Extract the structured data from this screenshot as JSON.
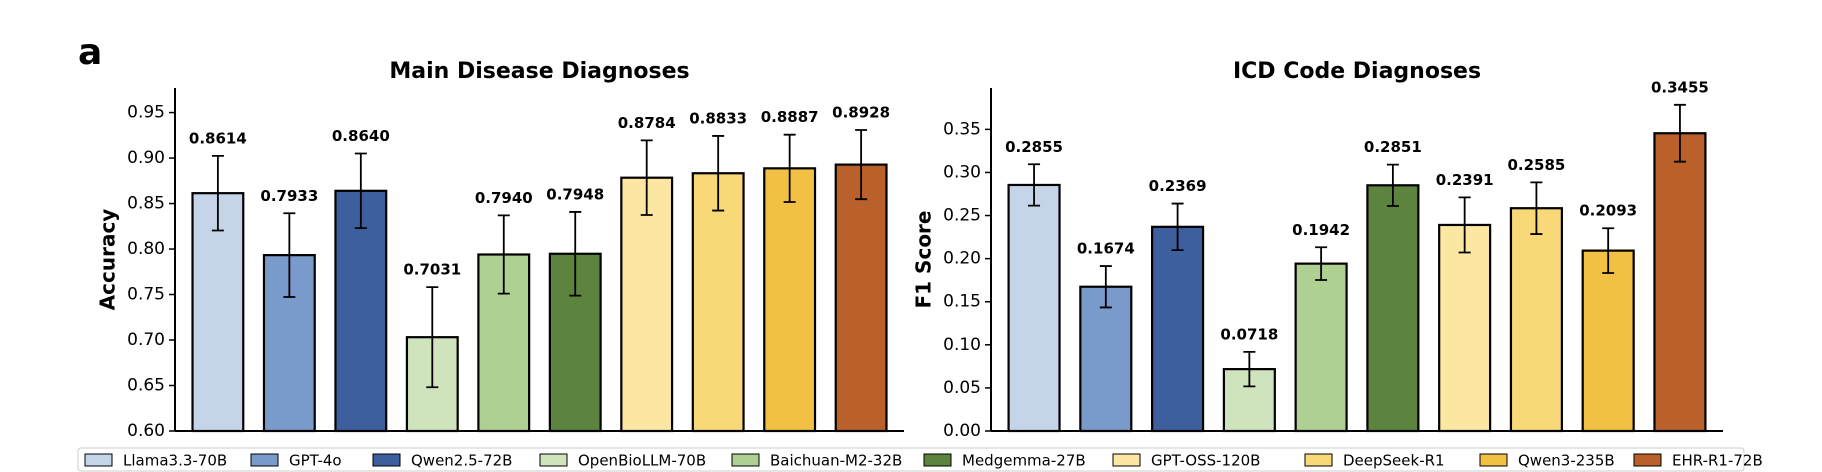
{
  "panel_label": "a",
  "chart_data": [
    {
      "type": "bar",
      "title": "Main Disease Diagnoses",
      "y_label": "Accuracy",
      "categories": [
        "Llama3.3-70B",
        "GPT-4o",
        "Qwen2.5-72B",
        "OpenBioLLM-70B",
        "Baichuan-M2-32B",
        "Medgemma-27B",
        "GPT-OSS-120B",
        "DeepSeek-R1",
        "Qwen3-235B",
        "EHR-R1-72B"
      ],
      "values": [
        0.8614,
        0.7933,
        0.864,
        0.7031,
        0.794,
        0.7948,
        0.8784,
        0.8833,
        0.8887,
        0.8928
      ],
      "value_labels": [
        "0.8614",
        "0.7933",
        "0.8640",
        "0.7031",
        "0.7940",
        "0.7948",
        "0.8784",
        "0.8833",
        "0.8887",
        "0.8928"
      ],
      "errors": [
        0.041,
        0.046,
        0.041,
        0.055,
        0.043,
        0.046,
        0.041,
        0.041,
        0.037,
        0.038
      ],
      "colors": [
        "#c5d4e8",
        "#7a9acb",
        "#3d5f9e",
        "#cfe3bd",
        "#aed093",
        "#5c843f",
        "#fbe6a2",
        "#f8d877",
        "#f2c143",
        "#b9602b"
      ],
      "ylim": [
        0.6,
        0.977
      ],
      "yticks": [
        {
          "value": 0.6,
          "label": "0.60"
        },
        {
          "value": 0.65,
          "label": "0.65"
        },
        {
          "value": 0.7,
          "label": "0.70"
        },
        {
          "value": 0.75,
          "label": "0.75"
        },
        {
          "value": 0.8,
          "label": "0.80"
        },
        {
          "value": 0.85,
          "label": "0.85"
        },
        {
          "value": 0.9,
          "label": "0.90"
        },
        {
          "value": 0.95,
          "label": "0.95"
        }
      ]
    },
    {
      "type": "bar",
      "title": "ICD Code Diagnoses",
      "y_label": "F1 Score",
      "categories": [
        "Llama3.3-70B",
        "GPT-4o",
        "Qwen2.5-72B",
        "OpenBioLLM-70B",
        "Baichuan-M2-32B",
        "Medgemma-27B",
        "GPT-OSS-120B",
        "DeepSeek-R1",
        "Qwen3-235B",
        "EHR-R1-72B"
      ],
      "values": [
        0.2855,
        0.1674,
        0.2369,
        0.0718,
        0.1942,
        0.2851,
        0.2391,
        0.2585,
        0.2093,
        0.3455
      ],
      "value_labels": [
        "0.2855",
        "0.1674",
        "0.2369",
        "0.0718",
        "0.1942",
        "0.2851",
        "0.2391",
        "0.2585",
        "0.2093",
        "0.3455"
      ],
      "errors": [
        0.024,
        0.024,
        0.027,
        0.02,
        0.019,
        0.024,
        0.032,
        0.03,
        0.026,
        0.033
      ],
      "colors": [
        "#c5d4e8",
        "#7a9acb",
        "#3d5f9e",
        "#cfe3bd",
        "#aed093",
        "#5c843f",
        "#fbe6a2",
        "#f8d877",
        "#f2c143",
        "#b9602b"
      ],
      "ylim": [
        0,
        0.398
      ],
      "yticks": [
        {
          "value": 0,
          "label": "0.00"
        },
        {
          "value": 0.05,
          "label": "0.05"
        },
        {
          "value": 0.1,
          "label": "0.10"
        },
        {
          "value": 0.15,
          "label": "0.15"
        },
        {
          "value": 0.2,
          "label": "0.20"
        },
        {
          "value": 0.25,
          "label": "0.25"
        },
        {
          "value": 0.3,
          "label": "0.30"
        },
        {
          "value": 0.35,
          "label": "0.35"
        }
      ]
    }
  ]
}
